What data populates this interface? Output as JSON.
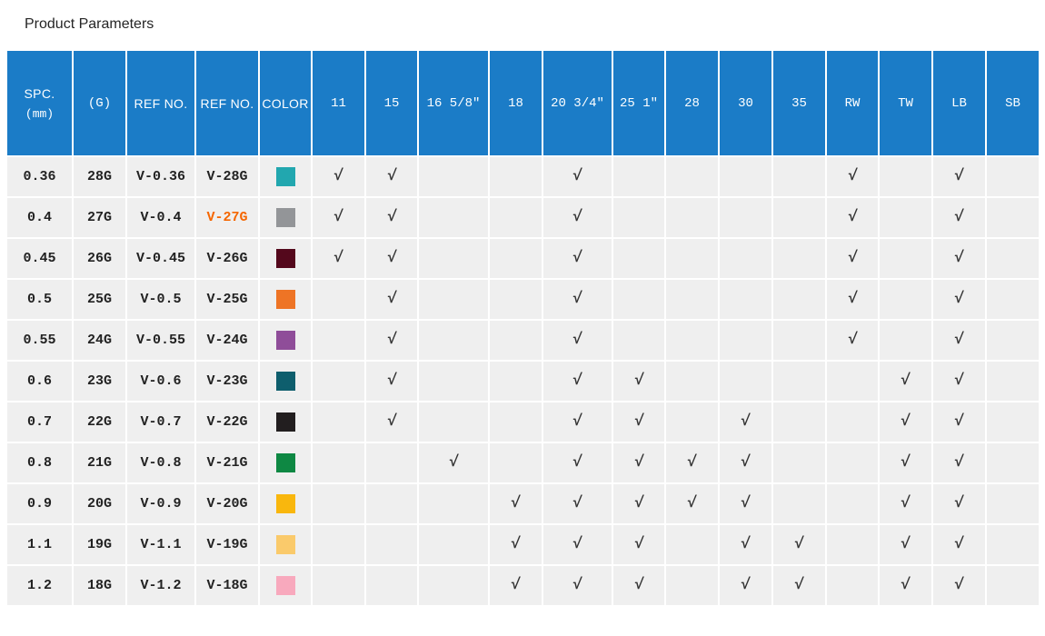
{
  "title": "Product Parameters",
  "check_glyph": "√",
  "colors": {
    "header_bg": "#1b7cc7",
    "header_text": "#ffffff",
    "row_bg": "#efefef",
    "body_text": "#222222",
    "check": "#333333"
  },
  "table": {
    "columns": [
      {
        "key": "spc",
        "label": "SPC.",
        "sublabel": "(mm)"
      },
      {
        "key": "g",
        "label": "(G)"
      },
      {
        "key": "ref1",
        "label": "REF NO."
      },
      {
        "key": "ref2",
        "label": "REF NO."
      },
      {
        "key": "color",
        "label": "COLOR"
      },
      {
        "key": "11",
        "label": "11"
      },
      {
        "key": "15",
        "label": "15"
      },
      {
        "key": "16",
        "label": "16 5/8″"
      },
      {
        "key": "18",
        "label": "18"
      },
      {
        "key": "20",
        "label": "20 3/4″"
      },
      {
        "key": "25",
        "label": "25 1″"
      },
      {
        "key": "28",
        "label": "28"
      },
      {
        "key": "30",
        "label": "30"
      },
      {
        "key": "35",
        "label": "35"
      },
      {
        "key": "rw",
        "label": "RW"
      },
      {
        "key": "tw",
        "label": "TW"
      },
      {
        "key": "lb",
        "label": "LB"
      },
      {
        "key": "sb",
        "label": "SB"
      }
    ],
    "rows": [
      {
        "spc": "0.36",
        "g": "28G",
        "ref1": "V-0.36",
        "ref2": "V-28G",
        "swatch": "#22a7af",
        "checks": [
          "11",
          "15",
          "20",
          "rw",
          "lb"
        ]
      },
      {
        "spc": "0.4",
        "g": "27G",
        "ref1": "V-0.4",
        "ref2": "V-27G",
        "ref2_color": "#f56600",
        "swatch": "#939598",
        "checks": [
          "11",
          "15",
          "20",
          "rw",
          "lb"
        ]
      },
      {
        "spc": "0.45",
        "g": "26G",
        "ref1": "V-0.45",
        "ref2": "V-26G",
        "swatch": "#54081c",
        "checks": [
          "11",
          "15",
          "20",
          "rw",
          "lb"
        ]
      },
      {
        "spc": "0.5",
        "g": "25G",
        "ref1": "V-0.5",
        "ref2": "V-25G",
        "swatch": "#ee7425",
        "checks": [
          "15",
          "20",
          "rw",
          "lb"
        ]
      },
      {
        "spc": "0.55",
        "g": "24G",
        "ref1": "V-0.55",
        "ref2": "V-24G",
        "swatch": "#8f4d99",
        "checks": [
          "15",
          "20",
          "rw",
          "lb"
        ]
      },
      {
        "spc": "0.6",
        "g": "23G",
        "ref1": "V-0.6",
        "ref2": "V-23G",
        "swatch": "#0e5e6d",
        "checks": [
          "15",
          "20",
          "25",
          "tw",
          "lb"
        ]
      },
      {
        "spc": "0.7",
        "g": "22G",
        "ref1": "V-0.7",
        "ref2": "V-22G",
        "swatch": "#221e1f",
        "checks": [
          "15",
          "20",
          "25",
          "30",
          "tw",
          "lb"
        ]
      },
      {
        "spc": "0.8",
        "g": "21G",
        "ref1": "V-0.8",
        "ref2": "V-21G",
        "swatch": "#0e8843",
        "checks": [
          "16",
          "20",
          "25",
          "28",
          "30",
          "tw",
          "lb"
        ]
      },
      {
        "spc": "0.9",
        "g": "20G",
        "ref1": "V-0.9",
        "ref2": "V-20G",
        "swatch": "#f9b70d",
        "checks": [
          "18",
          "20",
          "25",
          "28",
          "30",
          "tw",
          "lb"
        ]
      },
      {
        "spc": "1.1",
        "g": "19G",
        "ref1": "V-1.1",
        "ref2": "V-19G",
        "swatch": "#faca6b",
        "checks": [
          "18",
          "20",
          "25",
          "30",
          "35",
          "tw",
          "lb"
        ]
      },
      {
        "spc": "1.2",
        "g": "18G",
        "ref1": "V-1.2",
        "ref2": "V-18G",
        "swatch": "#f8a9bd",
        "checks": [
          "18",
          "20",
          "25",
          "30",
          "35",
          "tw",
          "lb"
        ]
      }
    ]
  }
}
